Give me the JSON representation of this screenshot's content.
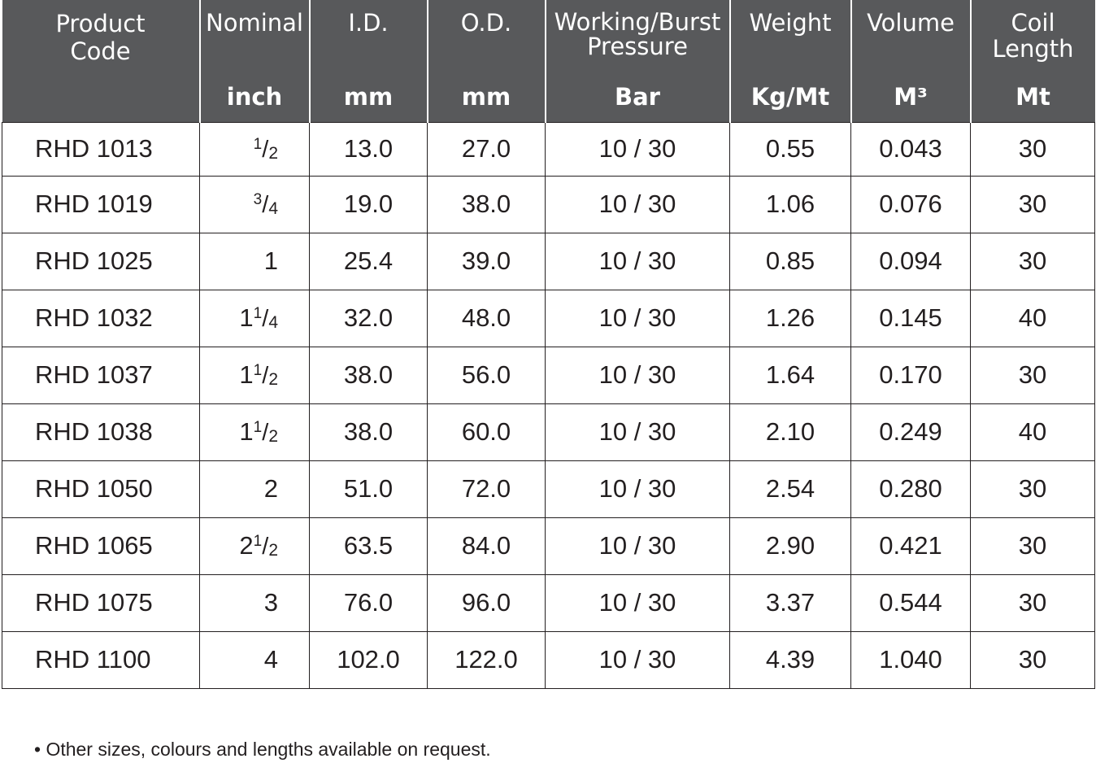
{
  "headers": [
    {
      "name": "Product Code",
      "unit": ""
    },
    {
      "name": "Nominal",
      "unit": "inch"
    },
    {
      "name": "I.D.",
      "unit": "mm"
    },
    {
      "name": "O.D.",
      "unit": "mm"
    },
    {
      "name": "Working/Burst Pressure",
      "unit": "Bar"
    },
    {
      "name": "Weight",
      "unit": "Kg/Mt"
    },
    {
      "name": "Volume",
      "unit": "M³"
    },
    {
      "name": "Coil Length",
      "unit": "Mt"
    }
  ],
  "header_lines": {
    "code_1": "Product",
    "code_2": "Code",
    "pressure_1": "Working/Burst",
    "pressure_2": "Pressure",
    "coil_1": "Coil",
    "coil_2": "Length"
  },
  "rows": [
    {
      "code": "RHD 1013",
      "nominal": {
        "whole": "",
        "num": "1",
        "den": "2"
      },
      "id": "13.0",
      "od": "27.0",
      "pressure": "10 / 30",
      "weight": "0.55",
      "volume": "0.043",
      "coil": "30"
    },
    {
      "code": "RHD 1019",
      "nominal": {
        "whole": "",
        "num": "3",
        "den": "4"
      },
      "id": "19.0",
      "od": "38.0",
      "pressure": "10 / 30",
      "weight": "1.06",
      "volume": "0.076",
      "coil": "30"
    },
    {
      "code": "RHD 1025",
      "nominal": {
        "whole": "1",
        "num": "",
        "den": ""
      },
      "id": "25.4",
      "od": "39.0",
      "pressure": "10 / 30",
      "weight": "0.85",
      "volume": "0.094",
      "coil": "30"
    },
    {
      "code": "RHD 1032",
      "nominal": {
        "whole": "1",
        "num": "1",
        "den": "4"
      },
      "id": "32.0",
      "od": "48.0",
      "pressure": "10 / 30",
      "weight": "1.26",
      "volume": "0.145",
      "coil": "40"
    },
    {
      "code": "RHD 1037",
      "nominal": {
        "whole": "1",
        "num": "1",
        "den": "2"
      },
      "id": "38.0",
      "od": "56.0",
      "pressure": "10 / 30",
      "weight": "1.64",
      "volume": "0.170",
      "coil": "30"
    },
    {
      "code": "RHD 1038",
      "nominal": {
        "whole": "1",
        "num": "1",
        "den": "2"
      },
      "id": "38.0",
      "od": "60.0",
      "pressure": "10 / 30",
      "weight": "2.10",
      "volume": "0.249",
      "coil": "40"
    },
    {
      "code": "RHD 1050",
      "nominal": {
        "whole": "2",
        "num": "",
        "den": ""
      },
      "id": "51.0",
      "od": "72.0",
      "pressure": "10 / 30",
      "weight": "2.54",
      "volume": "0.280",
      "coil": "30"
    },
    {
      "code": "RHD 1065",
      "nominal": {
        "whole": "2",
        "num": "1",
        "den": "2"
      },
      "id": "63.5",
      "od": "84.0",
      "pressure": "10 / 30",
      "weight": "2.90",
      "volume": "0.421",
      "coil": "30"
    },
    {
      "code": "RHD 1075",
      "nominal": {
        "whole": "3",
        "num": "",
        "den": ""
      },
      "id": "76.0",
      "od": "96.0",
      "pressure": "10 / 30",
      "weight": "3.37",
      "volume": "0.544",
      "coil": "30"
    },
    {
      "code": "RHD 1100",
      "nominal": {
        "whole": "4",
        "num": "",
        "den": ""
      },
      "id": "102.0",
      "od": "122.0",
      "pressure": "10 / 30",
      "weight": "4.39",
      "volume": "1.040",
      "coil": "30"
    }
  ],
  "footnote": "• Other sizes, colours and lengths available on request.",
  "colors": {
    "header_bg": "#58595b",
    "header_text": "#ffffff",
    "grid": "#231f20"
  }
}
